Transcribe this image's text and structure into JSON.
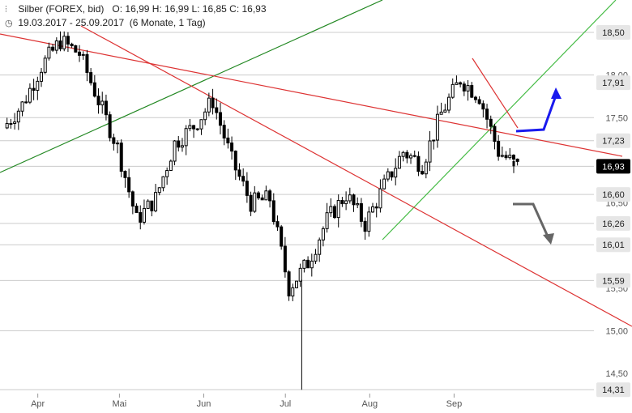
{
  "header": {
    "title": "Silber (FOREX, bid)",
    "ohlc": "O: 16,99  H: 16,99  L: 16,85  C: 16,93",
    "period": "19.03.2017 - 25.09.2017",
    "span": "(6 Monate, 1 Tag)",
    "chart_icon": "candlestick-icon",
    "clock_icon": "clock-icon"
  },
  "colors": {
    "candle": "#000000",
    "grid": "#cccccc",
    "trend_red": "#dd3333",
    "trend_green_dark": "#228822",
    "trend_green_light": "#44bb44",
    "arrow_up": "#1a1aee",
    "arrow_down": "#666666",
    "label_bg": "#e6e6e6",
    "current_bg": "#000000"
  },
  "chart_data": {
    "type": "candlestick",
    "title": "Silber (FOREX, bid)",
    "x_axis_labels": [
      "Apr",
      "Mai",
      "Jun",
      "Jul",
      "Aug",
      "Sep"
    ],
    "y_tick_labels": [
      "18,00",
      "17,50",
      "16,50",
      "15,50",
      "15,00",
      "14,50"
    ],
    "ylim": [
      14.31,
      18.5
    ],
    "price_labels": [
      {
        "text": "18,50",
        "value": 18.5,
        "current": false
      },
      {
        "text": "17,91",
        "value": 17.91,
        "current": false
      },
      {
        "text": "17,23",
        "value": 17.23,
        "current": false
      },
      {
        "text": "16,93",
        "value": 16.93,
        "current": true
      },
      {
        "text": "16,60",
        "value": 16.6,
        "current": false
      },
      {
        "text": "16,26",
        "value": 16.26,
        "current": false
      },
      {
        "text": "16,01",
        "value": 16.01,
        "current": false
      },
      {
        "text": "15,59",
        "value": 15.59,
        "current": false
      },
      {
        "text": "14,31",
        "value": 14.31,
        "current": false
      }
    ],
    "last": {
      "open": 16.99,
      "high": 16.99,
      "low": 16.85,
      "close": 16.93
    },
    "series": [
      {
        "date": "2017-03-20",
        "close": 17.38
      },
      {
        "date": "2017-03-27",
        "close": 17.65
      },
      {
        "date": "2017-04-03",
        "close": 18.1
      },
      {
        "date": "2017-04-10",
        "close": 18.4
      },
      {
        "date": "2017-04-17",
        "close": 18.25
      },
      {
        "date": "2017-04-24",
        "close": 17.7
      },
      {
        "date": "2017-05-01",
        "close": 17.15
      },
      {
        "date": "2017-05-08",
        "close": 16.3
      },
      {
        "date": "2017-05-15",
        "close": 16.55
      },
      {
        "date": "2017-05-22",
        "close": 17.2
      },
      {
        "date": "2017-05-29",
        "close": 17.4
      },
      {
        "date": "2017-06-05",
        "close": 17.7
      },
      {
        "date": "2017-06-12",
        "close": 17.0
      },
      {
        "date": "2017-06-19",
        "close": 16.5
      },
      {
        "date": "2017-06-26",
        "close": 16.55
      },
      {
        "date": "2017-07-03",
        "close": 15.5
      },
      {
        "date": "2017-07-10",
        "close": 15.8
      },
      {
        "date": "2017-07-17",
        "close": 16.3
      },
      {
        "date": "2017-07-24",
        "close": 16.6
      },
      {
        "date": "2017-07-31",
        "close": 16.25
      },
      {
        "date": "2017-08-07",
        "close": 16.7
      },
      {
        "date": "2017-08-14",
        "close": 17.1
      },
      {
        "date": "2017-08-21",
        "close": 16.95
      },
      {
        "date": "2017-08-28",
        "close": 17.55
      },
      {
        "date": "2017-09-04",
        "close": 17.95
      },
      {
        "date": "2017-09-11",
        "close": 17.75
      },
      {
        "date": "2017-09-18",
        "close": 17.1
      },
      {
        "date": "2017-09-25",
        "close": 16.93
      }
    ]
  }
}
